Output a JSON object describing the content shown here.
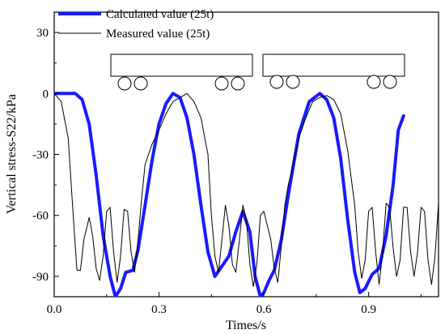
{
  "chart_data": {
    "type": "line",
    "xlabel": "Times/s",
    "ylabel": "Vertical stress-S22/kPa",
    "xlim": [
      0.0,
      1.1
    ],
    "ylim": [
      -100,
      40
    ],
    "xticks": [
      0.0,
      0.3,
      0.6,
      0.9
    ],
    "yticks": [
      30,
      0,
      -30,
      -60,
      -90
    ],
    "xtick_labels": [
      "0.0",
      "0.3",
      "0.6",
      "0.9"
    ],
    "ytick_labels": [
      "30",
      "0",
      "-30",
      "-60",
      "-90"
    ],
    "legend_position": "top-left",
    "grid": false,
    "series": [
      {
        "name": "Calculated value (25t)",
        "color": "#1a1aff",
        "style": "thick",
        "x": [
          0.0,
          0.06,
          0.08,
          0.1,
          0.12,
          0.14,
          0.16,
          0.175,
          0.19,
          0.205,
          0.225,
          0.24,
          0.26,
          0.28,
          0.3,
          0.32,
          0.34,
          0.36,
          0.38,
          0.4,
          0.42,
          0.44,
          0.46,
          0.48,
          0.5,
          0.52,
          0.54,
          0.56,
          0.575,
          0.59,
          0.6,
          0.615,
          0.63,
          0.65,
          0.67,
          0.7,
          0.73,
          0.76,
          0.78,
          0.8,
          0.82,
          0.84,
          0.86,
          0.875,
          0.89,
          0.91,
          0.93,
          0.95,
          0.97,
          0.985,
          1.0
        ],
        "y": [
          0,
          0,
          -3,
          -15,
          -40,
          -70,
          -90,
          -100,
          -96,
          -88,
          -87,
          -77,
          -55,
          -33,
          -15,
          -5,
          0,
          -2,
          -12,
          -30,
          -55,
          -78,
          -90,
          -85,
          -80,
          -68,
          -58,
          -68,
          -90,
          -100,
          -98,
          -92,
          -87,
          -72,
          -50,
          -20,
          -4,
          0,
          -3,
          -12,
          -32,
          -62,
          -88,
          -98,
          -96,
          -89,
          -86,
          -70,
          -45,
          -18,
          -11
        ]
      },
      {
        "name": "Measured value  (25t)",
        "color": "#000000",
        "style": "thin",
        "x": [
          0.0,
          0.02,
          0.04,
          0.055,
          0.065,
          0.075,
          0.085,
          0.1,
          0.11,
          0.12,
          0.13,
          0.14,
          0.15,
          0.16,
          0.17,
          0.18,
          0.19,
          0.2,
          0.21,
          0.22,
          0.23,
          0.24,
          0.25,
          0.26,
          0.27,
          0.28,
          0.3,
          0.32,
          0.34,
          0.36,
          0.38,
          0.4,
          0.42,
          0.44,
          0.45,
          0.46,
          0.47,
          0.48,
          0.49,
          0.5,
          0.51,
          0.52,
          0.53,
          0.54,
          0.55,
          0.56,
          0.57,
          0.58,
          0.59,
          0.6,
          0.62,
          0.63,
          0.64,
          0.65,
          0.66,
          0.67,
          0.68,
          0.69,
          0.7,
          0.72,
          0.74,
          0.76,
          0.78,
          0.8,
          0.82,
          0.84,
          0.86,
          0.87,
          0.88,
          0.89,
          0.9,
          0.91,
          0.92,
          0.93,
          0.94,
          0.95,
          0.96,
          0.97,
          0.98,
          0.99,
          1.0,
          1.01,
          1.02,
          1.03,
          1.04,
          1.05,
          1.06,
          1.07,
          1.08,
          1.09,
          1.1
        ],
        "y": [
          0,
          -4,
          -22,
          -62,
          -87,
          -87,
          -72,
          -61,
          -70,
          -86,
          -92,
          -80,
          -58,
          -56,
          -78,
          -93,
          -80,
          -57,
          -58,
          -78,
          -88,
          -72,
          -52,
          -35,
          -30,
          -25,
          -18,
          -10,
          -4,
          -2,
          0,
          -4,
          -12,
          -30,
          -60,
          -80,
          -88,
          -72,
          -55,
          -65,
          -84,
          -88,
          -72,
          -55,
          -62,
          -84,
          -95,
          -84,
          -60,
          -58,
          -72,
          -86,
          -93,
          -75,
          -55,
          -45,
          -38,
          -30,
          -22,
          -12,
          -4,
          -2,
          -1,
          -3,
          -10,
          -28,
          -55,
          -78,
          -91,
          -82,
          -58,
          -56,
          -78,
          -94,
          -78,
          -54,
          -56,
          -76,
          -90,
          -82,
          -56,
          -56,
          -78,
          -90,
          -78,
          -56,
          -58,
          -82,
          -94,
          -80,
          -54
        ]
      }
    ],
    "annotations": [
      "bogie-car-body-1",
      "bogie-car-body-2"
    ]
  }
}
